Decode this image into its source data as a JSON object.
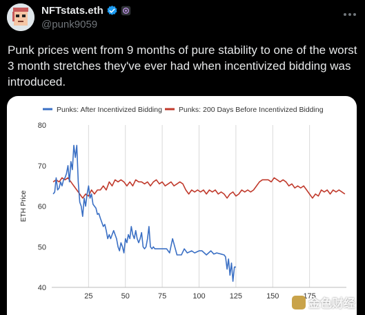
{
  "tweet": {
    "display_name": "NFTstats.eth",
    "handle": "@punk9059",
    "text": "Punk prices went from 9 months of pure stability to one of the worst 3 month stretches they've ever had when incentivized bidding was introduced.",
    "more_icon": "more-horizontal-icon",
    "verified_icon": "verified-badge-icon",
    "affiliate_icon": "affiliate-badge-icon",
    "accent_color": "#1d9bf0"
  },
  "watermark": {
    "text": "金色财经"
  },
  "chart_data": {
    "type": "line",
    "xlabel": "",
    "ylabel": "ETH Price",
    "ylim": [
      40,
      80
    ],
    "yticks": [
      40,
      50,
      60,
      70,
      80
    ],
    "xlim": [
      0,
      200
    ],
    "xticks": [
      25,
      50,
      75,
      100,
      125,
      150,
      175
    ],
    "grid": "vertical",
    "legend_position": "top",
    "series": [
      {
        "name": "Punks: After Incentivized Bidding",
        "color": "#3a6fc4",
        "x": [
          1,
          2,
          3,
          4,
          5,
          6,
          7,
          8,
          9,
          10,
          11,
          12,
          13,
          14,
          15,
          16,
          17,
          18,
          19,
          20,
          21,
          22,
          23,
          24,
          25,
          26,
          27,
          28,
          29,
          30,
          31,
          32,
          33,
          34,
          35,
          36,
          37,
          38,
          39,
          40,
          41,
          42,
          43,
          44,
          45,
          46,
          47,
          48,
          49,
          50,
          51,
          52,
          53,
          54,
          55,
          56,
          57,
          58,
          59,
          60,
          61,
          62,
          63,
          64,
          65,
          66,
          67,
          68,
          69,
          70,
          72,
          75,
          78,
          80,
          82,
          85,
          88,
          90,
          92,
          95,
          97,
          100,
          102,
          105,
          108,
          110,
          112,
          115,
          117,
          118,
          119,
          120,
          121,
          122,
          123,
          124,
          125
        ],
        "y": [
          63,
          63.5,
          67,
          64,
          64.5,
          66,
          65,
          66.5,
          67,
          68,
          70,
          66,
          71,
          69,
          75,
          72,
          75,
          66,
          61,
          60,
          57.5,
          62,
          60,
          63,
          65,
          62,
          63,
          60.5,
          60,
          59.5,
          58,
          58.2,
          57,
          56,
          55,
          55.5,
          54,
          52,
          53,
          52,
          53,
          54,
          53,
          52,
          50,
          49,
          51,
          50,
          48.5,
          52,
          51,
          53,
          52,
          55,
          53,
          52,
          54,
          52,
          51,
          52,
          53.5,
          50,
          49.5,
          50,
          52,
          55,
          50,
          49.5,
          50,
          49.5,
          49.5,
          49.5,
          49.5,
          48.5,
          52,
          48,
          48,
          49.5,
          48.5,
          49,
          48.5,
          49,
          49,
          48,
          49,
          48.2,
          48.5,
          48.2,
          48,
          47.5,
          44.5,
          47,
          43,
          46,
          41.5,
          45,
          45
        ]
      },
      {
        "name": "Punks: 200 Days Before Incentivized Bidding",
        "color": "#c0392b",
        "x": [
          1,
          3,
          5,
          7,
          9,
          11,
          13,
          15,
          17,
          19,
          21,
          23,
          25,
          27,
          29,
          31,
          33,
          35,
          37,
          39,
          41,
          43,
          45,
          47,
          49,
          51,
          53,
          55,
          57,
          59,
          61,
          63,
          65,
          67,
          69,
          71,
          73,
          75,
          77,
          79,
          81,
          83,
          85,
          87,
          89,
          91,
          93,
          95,
          97,
          99,
          101,
          103,
          105,
          107,
          109,
          111,
          113,
          115,
          117,
          119,
          121,
          123,
          125,
          127,
          129,
          131,
          133,
          135,
          137,
          139,
          141,
          143,
          145,
          147,
          149,
          151,
          153,
          155,
          157,
          159,
          161,
          163,
          165,
          167,
          169,
          171,
          173,
          175,
          177,
          179,
          181,
          183,
          185,
          187,
          189,
          191,
          193,
          195,
          197,
          199
        ],
        "y": [
          66,
          66.5,
          66,
          67,
          66.5,
          67,
          66,
          65,
          64,
          63,
          62,
          63,
          62.5,
          64,
          63,
          64,
          64,
          65,
          64,
          66,
          65,
          66.5,
          66,
          66.5,
          66,
          65,
          66,
          65,
          66.5,
          66,
          66,
          65.5,
          66,
          65,
          66,
          66.5,
          65.5,
          66,
          65,
          65.5,
          66,
          65,
          65.5,
          66,
          65.5,
          64,
          63,
          64,
          63.5,
          64,
          63.5,
          64,
          63,
          64,
          63.5,
          64,
          63,
          63.5,
          63,
          62,
          63,
          63.5,
          62.5,
          63,
          64,
          63.5,
          64,
          63.5,
          64,
          65,
          66,
          66.5,
          66.5,
          66.5,
          66,
          67,
          66.5,
          66,
          66.5,
          66,
          65,
          65.5,
          64.5,
          65,
          64.5,
          65,
          64,
          63,
          62,
          63,
          62.5,
          64,
          63.5,
          64,
          63,
          64,
          63.5,
          64,
          63.5,
          63
        ]
      }
    ]
  }
}
